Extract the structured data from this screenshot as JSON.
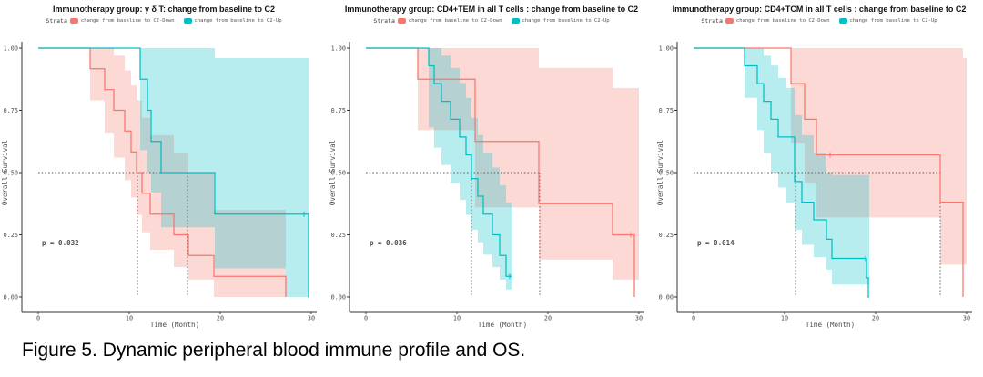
{
  "figure_caption": "Figure 5. Dynamic peripheral blood immune profile and OS.",
  "legend": {
    "strata_label": "Strata",
    "items": [
      {
        "label": "change from baseline to C2-Down",
        "color": "#F8766D"
      },
      {
        "label": "change from baseline to C2-Up",
        "color": "#00BFC4"
      }
    ]
  },
  "axes": {
    "x_label": "Time (Month)",
    "y_label": "Overall Survival",
    "x_ticks": [
      0,
      10,
      20,
      30
    ],
    "y_ticks": [
      1.0,
      0.75,
      0.5,
      0.25,
      0.0
    ],
    "xlim": [
      0,
      30
    ],
    "ylim": [
      0,
      1
    ]
  },
  "colors": {
    "down_line": "#F8766D",
    "up_line": "#00BFC4",
    "band_opacity": 0.28,
    "dashed_line": "#555555",
    "axis_line": "#333333",
    "tick_text": "#4d4d4d",
    "title_text": "#111111"
  },
  "chart_data": [
    {
      "type": "line",
      "subtype": "kaplan-meier",
      "title": "Immunotherapy group:  γ δ T: change from baseline to C2",
      "p_value_label": "p = 0.032",
      "median_dashed": {
        "y": 0.5,
        "h_end": 16.4,
        "verticals": [
          10.9,
          16.4
        ]
      },
      "series": [
        {
          "name": "change from baseline to C2-Down",
          "steps": [
            [
              5.7,
              0.917
            ],
            [
              7.3,
              0.833
            ],
            [
              8.3,
              0.75
            ],
            [
              9.5,
              0.667
            ],
            [
              10.2,
              0.583
            ],
            [
              10.8,
              0.5
            ],
            [
              11.4,
              0.417
            ],
            [
              12.3,
              0.333
            ],
            [
              14.9,
              0.25
            ],
            [
              16.5,
              0.167
            ],
            [
              19.3,
              0.083
            ],
            [
              27.2,
              0
            ]
          ],
          "end": 27.2,
          "censors": [],
          "ci_band": [
            [
              5.7,
              0.79,
              1
            ],
            [
              7.3,
              0.66,
              1
            ],
            [
              8.3,
              0.56,
              0.97
            ],
            [
              9.5,
              0.47,
              0.91
            ],
            [
              10.2,
              0.4,
              0.85
            ],
            [
              10.8,
              0.33,
              0.79
            ],
            [
              11.4,
              0.26,
              0.72
            ],
            [
              12.3,
              0.19,
              0.65
            ],
            [
              14.9,
              0.12,
              0.58
            ],
            [
              16.5,
              0.07,
              0.5
            ],
            [
              19.3,
              0,
              0.35
            ],
            [
              27.2,
              0,
              0.35
            ]
          ]
        },
        {
          "name": "change from baseline to C2-Up",
          "steps": [
            [
              11.2,
              0.875
            ],
            [
              12.0,
              0.75
            ],
            [
              12.4,
              0.625
            ],
            [
              13.5,
              0.5
            ],
            [
              19.4,
              0.333
            ],
            [
              29.7,
              0
            ]
          ],
          "end": 29.8,
          "censors": [
            [
              29.2,
              0.333
            ]
          ],
          "ci_band": [
            [
              11.2,
              0.59,
              1
            ],
            [
              12.0,
              0.5,
              1
            ],
            [
              12.4,
              0.42,
              1
            ],
            [
              13.5,
              0.28,
              1
            ],
            [
              19.4,
              0.115,
              0.96
            ],
            [
              27.2,
              0,
              0.96
            ],
            [
              29.8,
              0,
              0.96
            ]
          ]
        }
      ]
    },
    {
      "type": "line",
      "subtype": "kaplan-meier",
      "title": "Immunotherapy group:  CD4+TEM in all T cells : change from baseline to C2",
      "p_value_label": "p = 0.036",
      "median_dashed": {
        "y": 0.5,
        "h_end": 19.1,
        "verticals": [
          11.6,
          19.1
        ]
      },
      "series": [
        {
          "name": "change from baseline to C2-Down",
          "steps": [
            [
              5.7,
              0.875
            ],
            [
              12.0,
              0.625
            ],
            [
              19.0,
              0.375
            ],
            [
              27.1,
              0.25
            ],
            [
              29.5,
              0
            ]
          ],
          "end": 29.5,
          "censors": [
            [
              29.1,
              0.25
            ]
          ],
          "ci_band": [
            [
              5.7,
              0.67,
              1
            ],
            [
              12.0,
              0.36,
              1
            ],
            [
              19.0,
              0.15,
              0.92
            ],
            [
              27.1,
              0.07,
              0.84
            ],
            [
              30,
              0.07,
              0.84
            ]
          ]
        },
        {
          "name": "change from baseline to C2-Up",
          "steps": [
            [
              6.9,
              0.929
            ],
            [
              7.5,
              0.857
            ],
            [
              8.3,
              0.786
            ],
            [
              9.3,
              0.714
            ],
            [
              10.3,
              0.643
            ],
            [
              11.0,
              0.571
            ],
            [
              11.6,
              0.476
            ],
            [
              12.3,
              0.405
            ],
            [
              12.9,
              0.333
            ],
            [
              13.9,
              0.25
            ],
            [
              14.7,
              0.167
            ],
            [
              15.4,
              0.083
            ]
          ],
          "end": 16.0,
          "censors": [
            [
              15.8,
              0.083
            ]
          ],
          "ci_band": [
            [
              6.9,
              0.68,
              1
            ],
            [
              7.5,
              0.6,
              1
            ],
            [
              8.3,
              0.53,
              0.97
            ],
            [
              9.3,
              0.46,
              0.92
            ],
            [
              10.3,
              0.39,
              0.86
            ],
            [
              11.0,
              0.33,
              0.8
            ],
            [
              11.6,
              0.27,
              0.72
            ],
            [
              12.3,
              0.22,
              0.65
            ],
            [
              12.9,
              0.17,
              0.58
            ],
            [
              13.9,
              0.12,
              0.52
            ],
            [
              14.7,
              0.07,
              0.45
            ],
            [
              15.4,
              0.03,
              0.38
            ],
            [
              16.1,
              0.03,
              0.38
            ]
          ]
        }
      ]
    },
    {
      "type": "line",
      "subtype": "kaplan-meier",
      "title": "Immunotherapy group:  CD4+TCM in all T cells : change from baseline to C2",
      "p_value_label": "p = 0.014",
      "median_dashed": {
        "y": 0.5,
        "h_end": 27.1,
        "verticals": [
          11.2,
          27.1
        ]
      },
      "series": [
        {
          "name": "change from baseline to C2-Down",
          "steps": [
            [
              10.7,
              0.857
            ],
            [
              12.2,
              0.714
            ],
            [
              13.5,
              0.571
            ],
            [
              27.1,
              0.381
            ],
            [
              29.6,
              0
            ]
          ],
          "end": 29.6,
          "censors": [
            [
              15.0,
              0.571
            ]
          ],
          "ci_band": [
            [
              10.7,
              0.62,
              1
            ],
            [
              12.2,
              0.46,
              1
            ],
            [
              13.5,
              0.32,
              1
            ],
            [
              27.1,
              0.13,
              1
            ],
            [
              29.6,
              0.13,
              0.96
            ],
            [
              30,
              0.13,
              0.96
            ]
          ]
        },
        {
          "name": "change from baseline to C2-Up",
          "steps": [
            [
              5.6,
              0.929
            ],
            [
              7.0,
              0.857
            ],
            [
              7.7,
              0.786
            ],
            [
              8.5,
              0.714
            ],
            [
              9.3,
              0.643
            ],
            [
              11.1,
              0.464
            ],
            [
              11.9,
              0.381
            ],
            [
              13.2,
              0.31
            ],
            [
              14.6,
              0.232
            ],
            [
              15.2,
              0.155
            ],
            [
              19.0,
              0.077
            ],
            [
              19.2,
              0
            ]
          ],
          "end": 19.3,
          "censors": [
            [
              18.9,
              0.155
            ]
          ],
          "ci_band": [
            [
              5.6,
              0.8,
              1
            ],
            [
              7.0,
              0.67,
              1
            ],
            [
              7.7,
              0.58,
              0.97
            ],
            [
              8.5,
              0.5,
              0.93
            ],
            [
              9.3,
              0.44,
              0.88
            ],
            [
              10.2,
              0.38,
              0.84
            ],
            [
              11.1,
              0.27,
              0.73
            ],
            [
              11.9,
              0.21,
              0.65
            ],
            [
              13.2,
              0.16,
              0.58
            ],
            [
              14.6,
              0.11,
              0.5
            ],
            [
              15.2,
              0.05,
              0.49
            ],
            [
              19.3,
              0.05,
              0.49
            ]
          ]
        }
      ]
    }
  ]
}
